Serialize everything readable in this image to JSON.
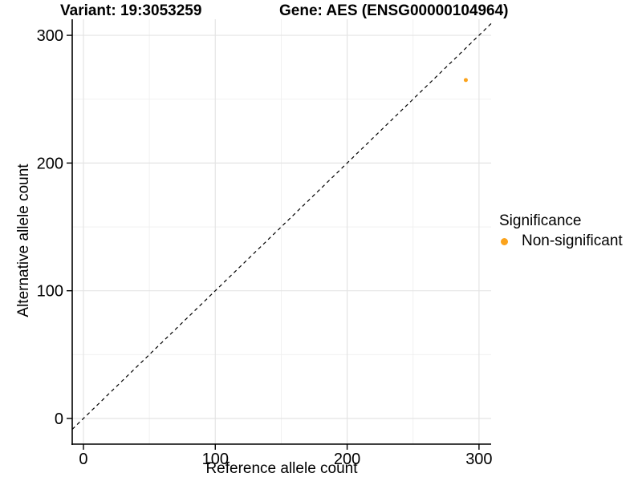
{
  "header": {
    "variant_title": "Variant: 19:3053259",
    "gene_title": "Gene: AES (ENSG00000104964)"
  },
  "chart_data": {
    "type": "scatter",
    "title": "Variant: 19:3053259 / Gene: AES (ENSG00000104964)",
    "xlabel": "Reference allele count",
    "ylabel": "Alternative allele count",
    "xticks": [
      0,
      100,
      200,
      300
    ],
    "yticks": [
      0,
      100,
      200,
      300
    ],
    "xlim": [
      -8.5,
      309.2
    ],
    "ylim": [
      -20.1,
      312.6
    ],
    "grid": true,
    "legend_position": "right",
    "abline": {
      "slope": 1,
      "intercept": 0,
      "style": "dashed",
      "color": "#000000"
    },
    "points": [
      {
        "x": 290,
        "y": 265,
        "series": "Non-significant"
      }
    ],
    "series_colors": {
      "Non-significant": "#FBA31C"
    },
    "legend": {
      "title": "Significance",
      "items": [
        {
          "label": "Non-significant",
          "color": "#FBA31C"
        }
      ]
    },
    "colors": {
      "background": "#FFFFFF",
      "grid_major": "#E4E4E4",
      "grid_minor": "#EFEFEF",
      "axis": "#000000",
      "text": "#000000"
    }
  }
}
